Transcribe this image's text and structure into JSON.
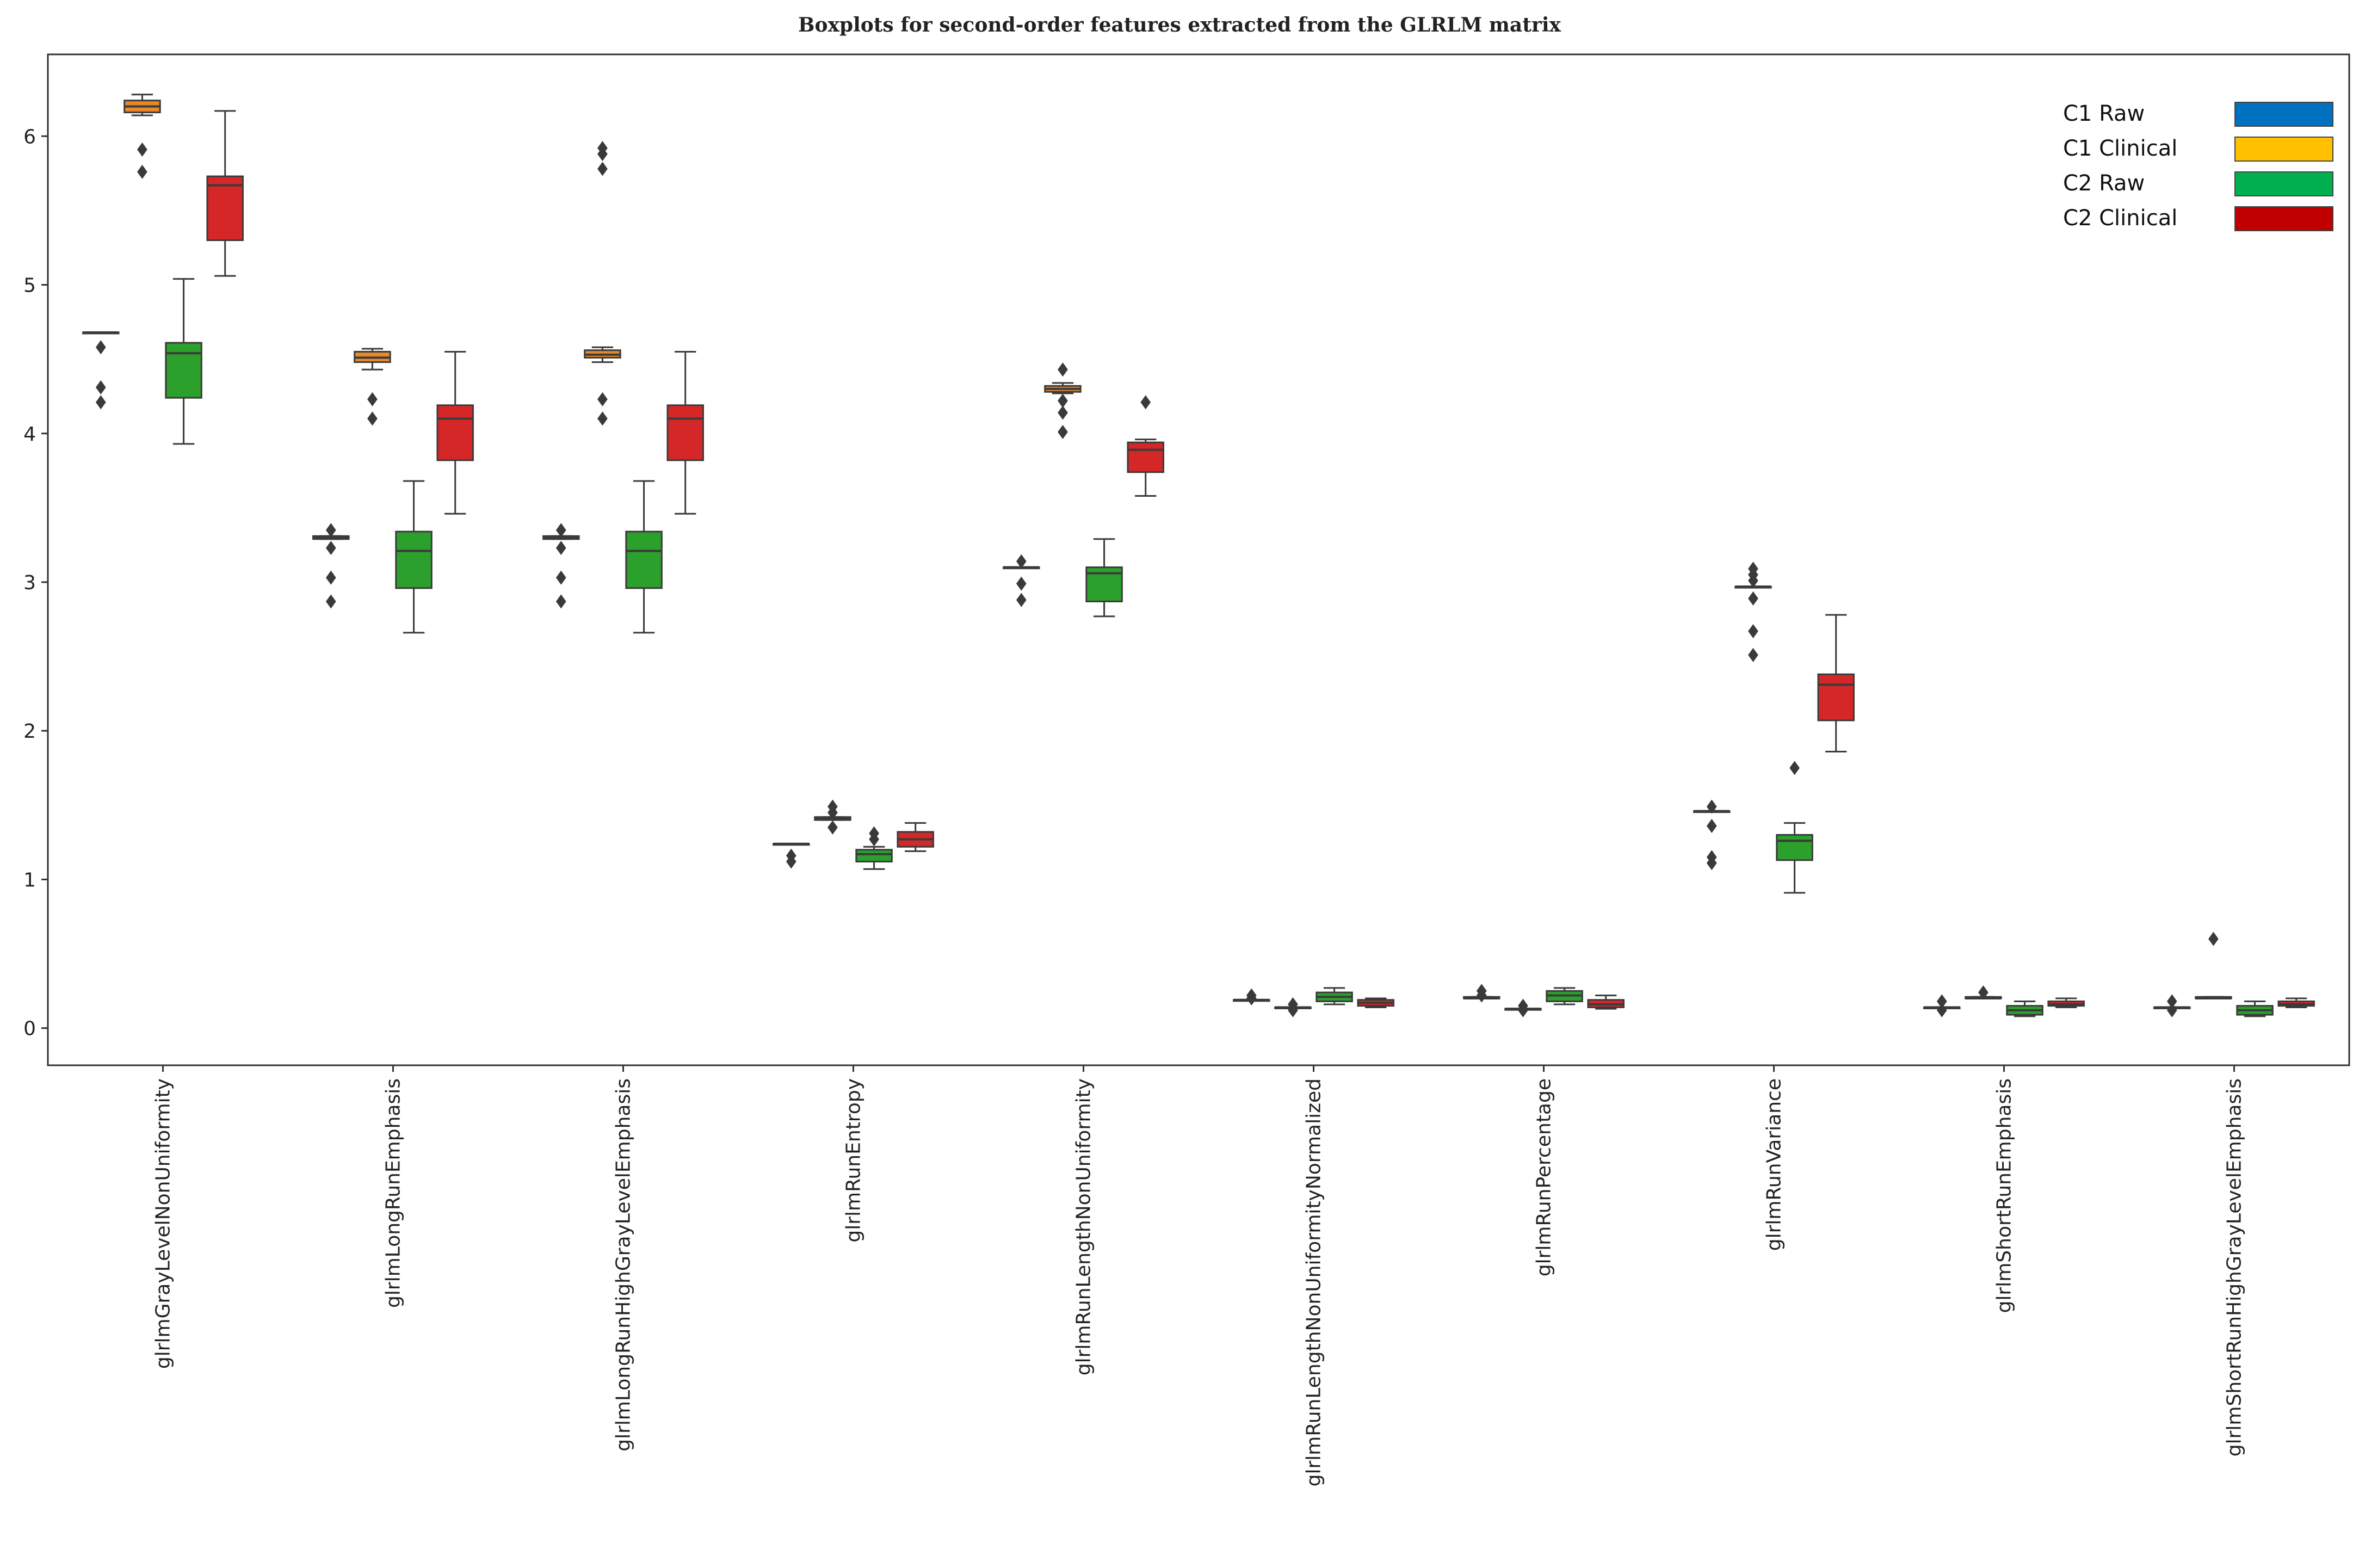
{
  "chart_data": {
    "type": "boxplot",
    "title": "Boxplots for second-order features extracted from the GLRLM matrix",
    "xlabel": "",
    "ylabel": "",
    "ylim": [
      -0.25,
      6.55
    ],
    "yticks": [
      0,
      1,
      2,
      3,
      4,
      5,
      6
    ],
    "grid": false,
    "legend_position": "top-right",
    "categories": [
      "glrlmGrayLevelNonUniformity",
      "glrlmLongRunEmphasis",
      "glrlmLongRunHighGrayLevelEmphasis",
      "glrlmRunEntropy",
      "glrlmRunLengthNonUniformity",
      "glrlmRunLengthNonUniformityNormalized",
      "glrlmRunPercentage",
      "glrlmRunVariance",
      "glrlmShortRunEmphasis",
      "glrlmShortRunHighGrayLevelEmphasis"
    ],
    "series": [
      {
        "name": "C1 Raw",
        "legend_color": "#0070c0",
        "box_color": "#1f77b4",
        "boxes": [
          {
            "whislo": 4.68,
            "q1": 4.68,
            "med": 4.68,
            "q3": 4.68,
            "whishi": 4.68,
            "fliers": [
              4.58,
              4.31,
              4.21
            ]
          },
          {
            "whislo": 3.29,
            "q1": 3.29,
            "med": 3.3,
            "q3": 3.31,
            "whishi": 3.31,
            "fliers": [
              3.35,
              3.23,
              3.03,
              2.87
            ]
          },
          {
            "whislo": 3.29,
            "q1": 3.29,
            "med": 3.3,
            "q3": 3.31,
            "whishi": 3.31,
            "fliers": [
              3.35,
              3.23,
              3.03,
              2.87
            ]
          },
          {
            "whislo": 1.24,
            "q1": 1.24,
            "med": 1.24,
            "q3": 1.24,
            "whishi": 1.24,
            "fliers": [
              1.16,
              1.12
            ]
          },
          {
            "whislo": 3.1,
            "q1": 3.1,
            "med": 3.1,
            "q3": 3.1,
            "whishi": 3.1,
            "fliers": [
              3.14,
              2.99,
              2.88
            ]
          },
          {
            "whislo": 0.19,
            "q1": 0.19,
            "med": 0.19,
            "q3": 0.19,
            "whishi": 0.19,
            "fliers": [
              0.22,
              0.2
            ]
          },
          {
            "whislo": 0.2,
            "q1": 0.2,
            "med": 0.2,
            "q3": 0.21,
            "whishi": 0.21,
            "fliers": [
              0.25,
              0.22
            ]
          },
          {
            "whislo": 1.46,
            "q1": 1.46,
            "med": 1.46,
            "q3": 1.46,
            "whishi": 1.46,
            "fliers": [
              1.49,
              1.36,
              1.15,
              1.11
            ]
          },
          {
            "whislo": 0.14,
            "q1": 0.14,
            "med": 0.14,
            "q3": 0.14,
            "whishi": 0.14,
            "fliers": [
              0.18,
              0.12
            ]
          },
          {
            "whislo": 0.14,
            "q1": 0.14,
            "med": 0.14,
            "q3": 0.14,
            "whishi": 0.14,
            "fliers": [
              0.18,
              0.12
            ]
          }
        ]
      },
      {
        "name": "C1 Clinical",
        "legend_color": "#ffc000",
        "box_color": "#e8882a",
        "boxes": [
          {
            "whislo": 6.14,
            "q1": 6.16,
            "med": 6.2,
            "q3": 6.24,
            "whishi": 6.28,
            "fliers": [
              5.91,
              5.76
            ]
          },
          {
            "whislo": 4.43,
            "q1": 4.48,
            "med": 4.51,
            "q3": 4.55,
            "whishi": 4.57,
            "fliers": [
              4.23,
              4.1
            ]
          },
          {
            "whislo": 4.48,
            "q1": 4.51,
            "med": 4.53,
            "q3": 4.56,
            "whishi": 4.58,
            "fliers": [
              5.92,
              5.88,
              5.78,
              4.23,
              4.1
            ]
          },
          {
            "whislo": 1.4,
            "q1": 1.4,
            "med": 1.41,
            "q3": 1.42,
            "whishi": 1.42,
            "fliers": [
              1.49,
              1.45,
              1.35
            ]
          },
          {
            "whislo": 4.27,
            "q1": 4.28,
            "med": 4.3,
            "q3": 4.32,
            "whishi": 4.34,
            "fliers": [
              4.43,
              4.22,
              4.14,
              4.01
            ]
          },
          {
            "whislo": 0.14,
            "q1": 0.14,
            "med": 0.14,
            "q3": 0.14,
            "whishi": 0.14,
            "fliers": [
              0.16,
              0.12
            ]
          },
          {
            "whislo": 0.13,
            "q1": 0.13,
            "med": 0.13,
            "q3": 0.13,
            "whishi": 0.13,
            "fliers": [
              0.15,
              0.12
            ]
          },
          {
            "whislo": 2.97,
            "q1": 2.97,
            "med": 2.97,
            "q3": 2.97,
            "whishi": 2.97,
            "fliers": [
              3.09,
              3.05,
              3.01,
              2.89,
              2.67,
              2.51
            ]
          },
          {
            "whislo": 0.2,
            "q1": 0.2,
            "med": 0.2,
            "q3": 0.21,
            "whishi": 0.21,
            "fliers": [
              0.24
            ]
          },
          {
            "whislo": 0.2,
            "q1": 0.2,
            "med": 0.2,
            "q3": 0.21,
            "whishi": 0.21,
            "fliers": [
              0.6
            ]
          }
        ]
      },
      {
        "name": "C2 Raw",
        "legend_color": "#00b050",
        "box_color": "#2ca02c",
        "boxes": [
          {
            "whislo": 3.93,
            "q1": 4.24,
            "med": 4.54,
            "q3": 4.61,
            "whishi": 5.04,
            "fliers": []
          },
          {
            "whislo": 2.66,
            "q1": 2.96,
            "med": 3.21,
            "q3": 3.34,
            "whishi": 3.68,
            "fliers": []
          },
          {
            "whislo": 2.66,
            "q1": 2.96,
            "med": 3.21,
            "q3": 3.34,
            "whishi": 3.68,
            "fliers": []
          },
          {
            "whislo": 1.07,
            "q1": 1.12,
            "med": 1.17,
            "q3": 1.2,
            "whishi": 1.22,
            "fliers": [
              1.31,
              1.27
            ]
          },
          {
            "whislo": 2.77,
            "q1": 2.87,
            "med": 3.06,
            "q3": 3.1,
            "whishi": 3.29,
            "fliers": []
          },
          {
            "whislo": 0.16,
            "q1": 0.18,
            "med": 0.21,
            "q3": 0.24,
            "whishi": 0.27,
            "fliers": []
          },
          {
            "whislo": 0.16,
            "q1": 0.18,
            "med": 0.22,
            "q3": 0.25,
            "whishi": 0.27,
            "fliers": []
          },
          {
            "whislo": 0.91,
            "q1": 1.13,
            "med": 1.26,
            "q3": 1.3,
            "whishi": 1.38,
            "fliers": [
              1.75
            ]
          },
          {
            "whislo": 0.08,
            "q1": 0.09,
            "med": 0.12,
            "q3": 0.15,
            "whishi": 0.18,
            "fliers": []
          },
          {
            "whislo": 0.08,
            "q1": 0.09,
            "med": 0.12,
            "q3": 0.15,
            "whishi": 0.18,
            "fliers": []
          }
        ]
      },
      {
        "name": "C2 Clinical",
        "legend_color": "#c00000",
        "box_color": "#d62728",
        "boxes": [
          {
            "whislo": 5.06,
            "q1": 5.3,
            "med": 5.67,
            "q3": 5.73,
            "whishi": 6.17,
            "fliers": []
          },
          {
            "whislo": 3.46,
            "q1": 3.82,
            "med": 4.1,
            "q3": 4.19,
            "whishi": 4.55,
            "fliers": []
          },
          {
            "whislo": 3.46,
            "q1": 3.82,
            "med": 4.1,
            "q3": 4.19,
            "whishi": 4.55,
            "fliers": []
          },
          {
            "whislo": 1.19,
            "q1": 1.22,
            "med": 1.27,
            "q3": 1.32,
            "whishi": 1.38,
            "fliers": []
          },
          {
            "whislo": 3.58,
            "q1": 3.74,
            "med": 3.89,
            "q3": 3.94,
            "whishi": 3.96,
            "fliers": [
              4.21
            ]
          },
          {
            "whislo": 0.14,
            "q1": 0.15,
            "med": 0.17,
            "q3": 0.19,
            "whishi": 0.2,
            "fliers": []
          },
          {
            "whislo": 0.13,
            "q1": 0.14,
            "med": 0.16,
            "q3": 0.19,
            "whishi": 0.22,
            "fliers": []
          },
          {
            "whislo": 1.86,
            "q1": 2.07,
            "med": 2.31,
            "q3": 2.38,
            "whishi": 2.78,
            "fliers": []
          },
          {
            "whislo": 0.14,
            "q1": 0.15,
            "med": 0.16,
            "q3": 0.18,
            "whishi": 0.2,
            "fliers": []
          },
          {
            "whislo": 0.14,
            "q1": 0.15,
            "med": 0.16,
            "q3": 0.18,
            "whishi": 0.2,
            "fliers": []
          }
        ]
      }
    ]
  }
}
